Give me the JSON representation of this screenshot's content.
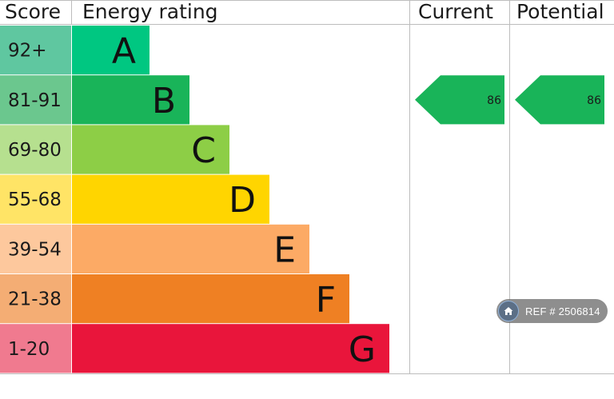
{
  "chart_data": {
    "type": "bar",
    "headers": {
      "score": "Score",
      "energy_rating": "Energy rating",
      "current": "Current",
      "potential": "Potential"
    },
    "bands": [
      {
        "letter": "A",
        "range": "92+",
        "color": "#00c781",
        "score_color": "#5fc7a0"
      },
      {
        "letter": "B",
        "range": "81-91",
        "color": "#19b459",
        "score_color": "#6bc78e"
      },
      {
        "letter": "C",
        "range": "69-80",
        "color": "#8dce46",
        "score_color": "#b6e08f"
      },
      {
        "letter": "D",
        "range": "55-68",
        "color": "#ffd500",
        "score_color": "#ffe466"
      },
      {
        "letter": "E",
        "range": "39-54",
        "color": "#fcaa65",
        "score_color": "#fdc89d"
      },
      {
        "letter": "F",
        "range": "21-38",
        "color": "#ef8023",
        "score_color": "#f4ad74"
      },
      {
        "letter": "G",
        "range": "1-20",
        "color": "#e9153b",
        "score_color": "#f07a8f"
      }
    ],
    "current": {
      "value": "86",
      "band": "B",
      "color": "#19b459"
    },
    "potential": {
      "value": "86",
      "band": "B",
      "color": "#19b459"
    }
  },
  "watermark": {
    "icon": "home-icon",
    "text": "REF # 2506814"
  }
}
